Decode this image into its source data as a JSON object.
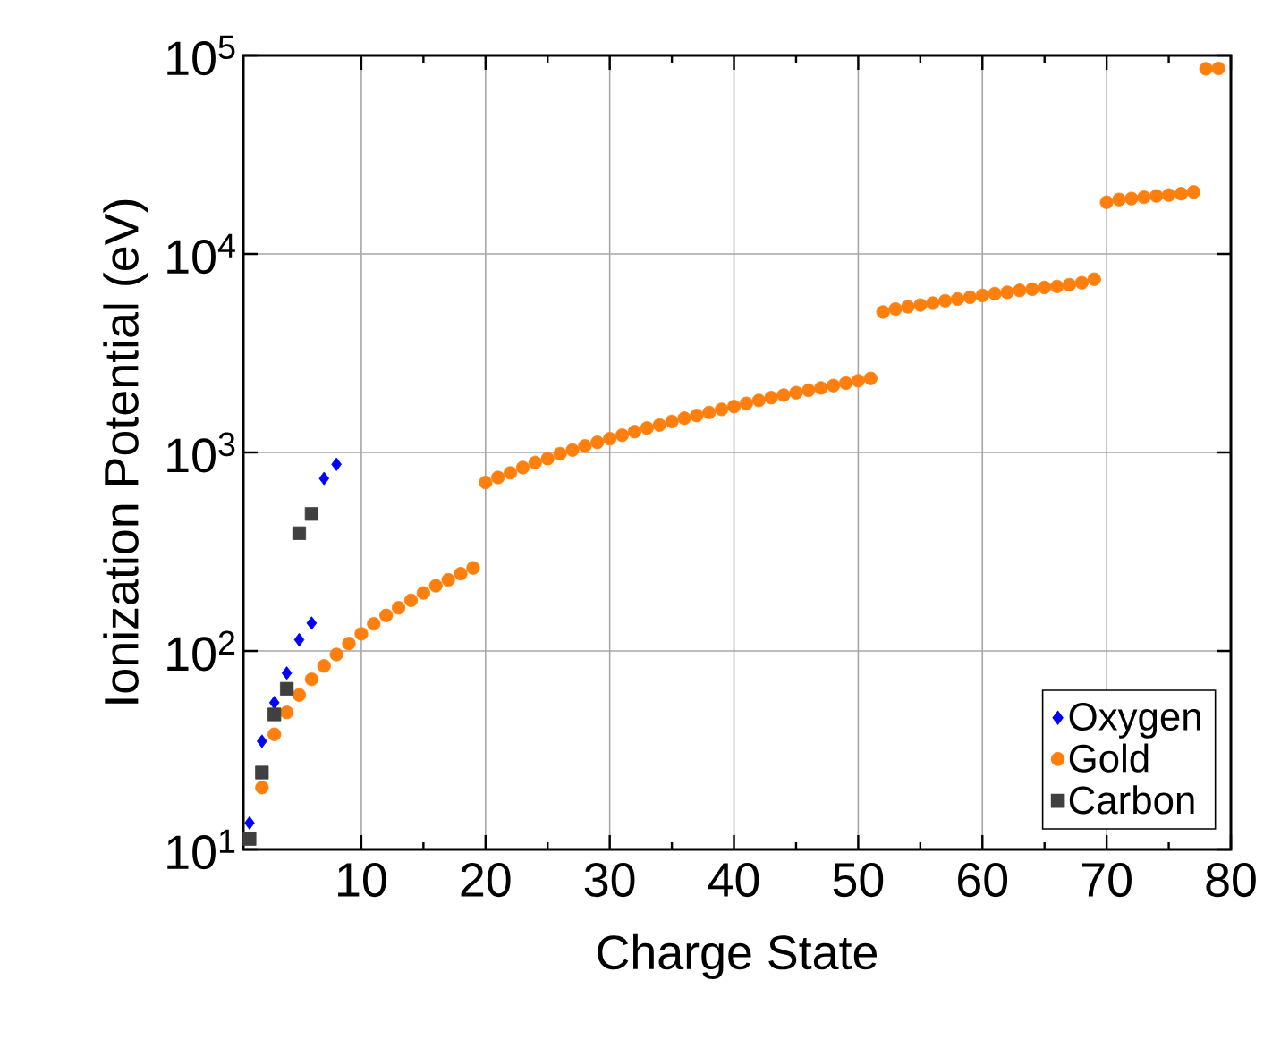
{
  "chart_data": {
    "type": "scatter",
    "xlabel": "Charge State",
    "ylabel": "Ionization Potential (eV)",
    "log": "y",
    "grid": true,
    "legend": "bottom right",
    "xlim": [
      0.5,
      80
    ],
    "xticks": [
      10,
      20,
      30,
      40,
      50,
      60,
      70,
      80
    ],
    "ylim": [
      10,
      100000
    ],
    "yticks": [
      {
        "value": 10,
        "label": "10$^{1}$"
      },
      {
        "value": 100,
        "label": "10$^{2}$"
      },
      {
        "value": 1000,
        "label": "10$^{3}$"
      },
      {
        "value": 10000,
        "label": "10$^{4}$"
      },
      {
        "value": 100000,
        "label": "10$^{5}$"
      }
    ],
    "series": [
      {
        "name": "Oxygen",
        "color": "#0000ff",
        "marker": "diamond",
        "x": [
          1,
          2,
          3,
          4,
          5,
          6,
          7,
          8
        ],
        "values": [
          13.6,
          35.1,
          54.9,
          77.4,
          113.9,
          138.1,
          739.3,
          871.4
        ]
      },
      {
        "name": "Gold",
        "color": "#ff7f0e",
        "marker": "circle",
        "x": [
          2,
          3,
          4,
          5,
          6,
          7,
          8,
          9,
          10,
          11,
          12,
          13,
          14,
          15,
          16,
          17,
          18,
          19,
          20,
          21,
          22,
          23,
          24,
          25,
          26,
          27,
          28,
          29,
          30,
          31,
          32,
          33,
          34,
          35,
          36,
          37,
          38,
          39,
          40,
          41,
          42,
          43,
          44,
          45,
          46,
          47,
          48,
          49,
          50,
          51,
          52,
          53,
          54,
          55,
          56,
          57,
          58,
          59,
          60,
          61,
          62,
          63,
          64,
          65,
          66,
          67,
          68,
          69,
          70,
          71,
          72,
          73,
          74,
          75,
          76,
          77,
          78,
          79
        ],
        "values": [
          20.5,
          38,
          49,
          60,
          72,
          84,
          96,
          109,
          122,
          137,
          151,
          165,
          180,
          196,
          213,
          228,
          245,
          262,
          706,
          748,
          789,
          839,
          889,
          931,
          986,
          1028,
          1079,
          1124,
          1172,
          1222,
          1273,
          1327,
          1374,
          1432,
          1486,
          1535,
          1589,
          1648,
          1702,
          1766,
          1828,
          1888,
          1945,
          2000,
          2056,
          2113,
          2173,
          2234,
          2296,
          2360,
          5100,
          5280,
          5420,
          5530,
          5650,
          5810,
          5930,
          6050,
          6180,
          6310,
          6410,
          6550,
          6640,
          6780,
          6860,
          7000,
          7160,
          7460,
          18200,
          18800,
          19000,
          19300,
          19600,
          19800,
          20100,
          20500,
          85700,
          86000
        ]
      },
      {
        "name": "Carbon",
        "color": "#404040",
        "marker": "square",
        "x": [
          1,
          2,
          3,
          4,
          5,
          6
        ],
        "values": [
          11.3,
          24.4,
          47.9,
          64.5,
          392,
          490
        ]
      }
    ]
  }
}
